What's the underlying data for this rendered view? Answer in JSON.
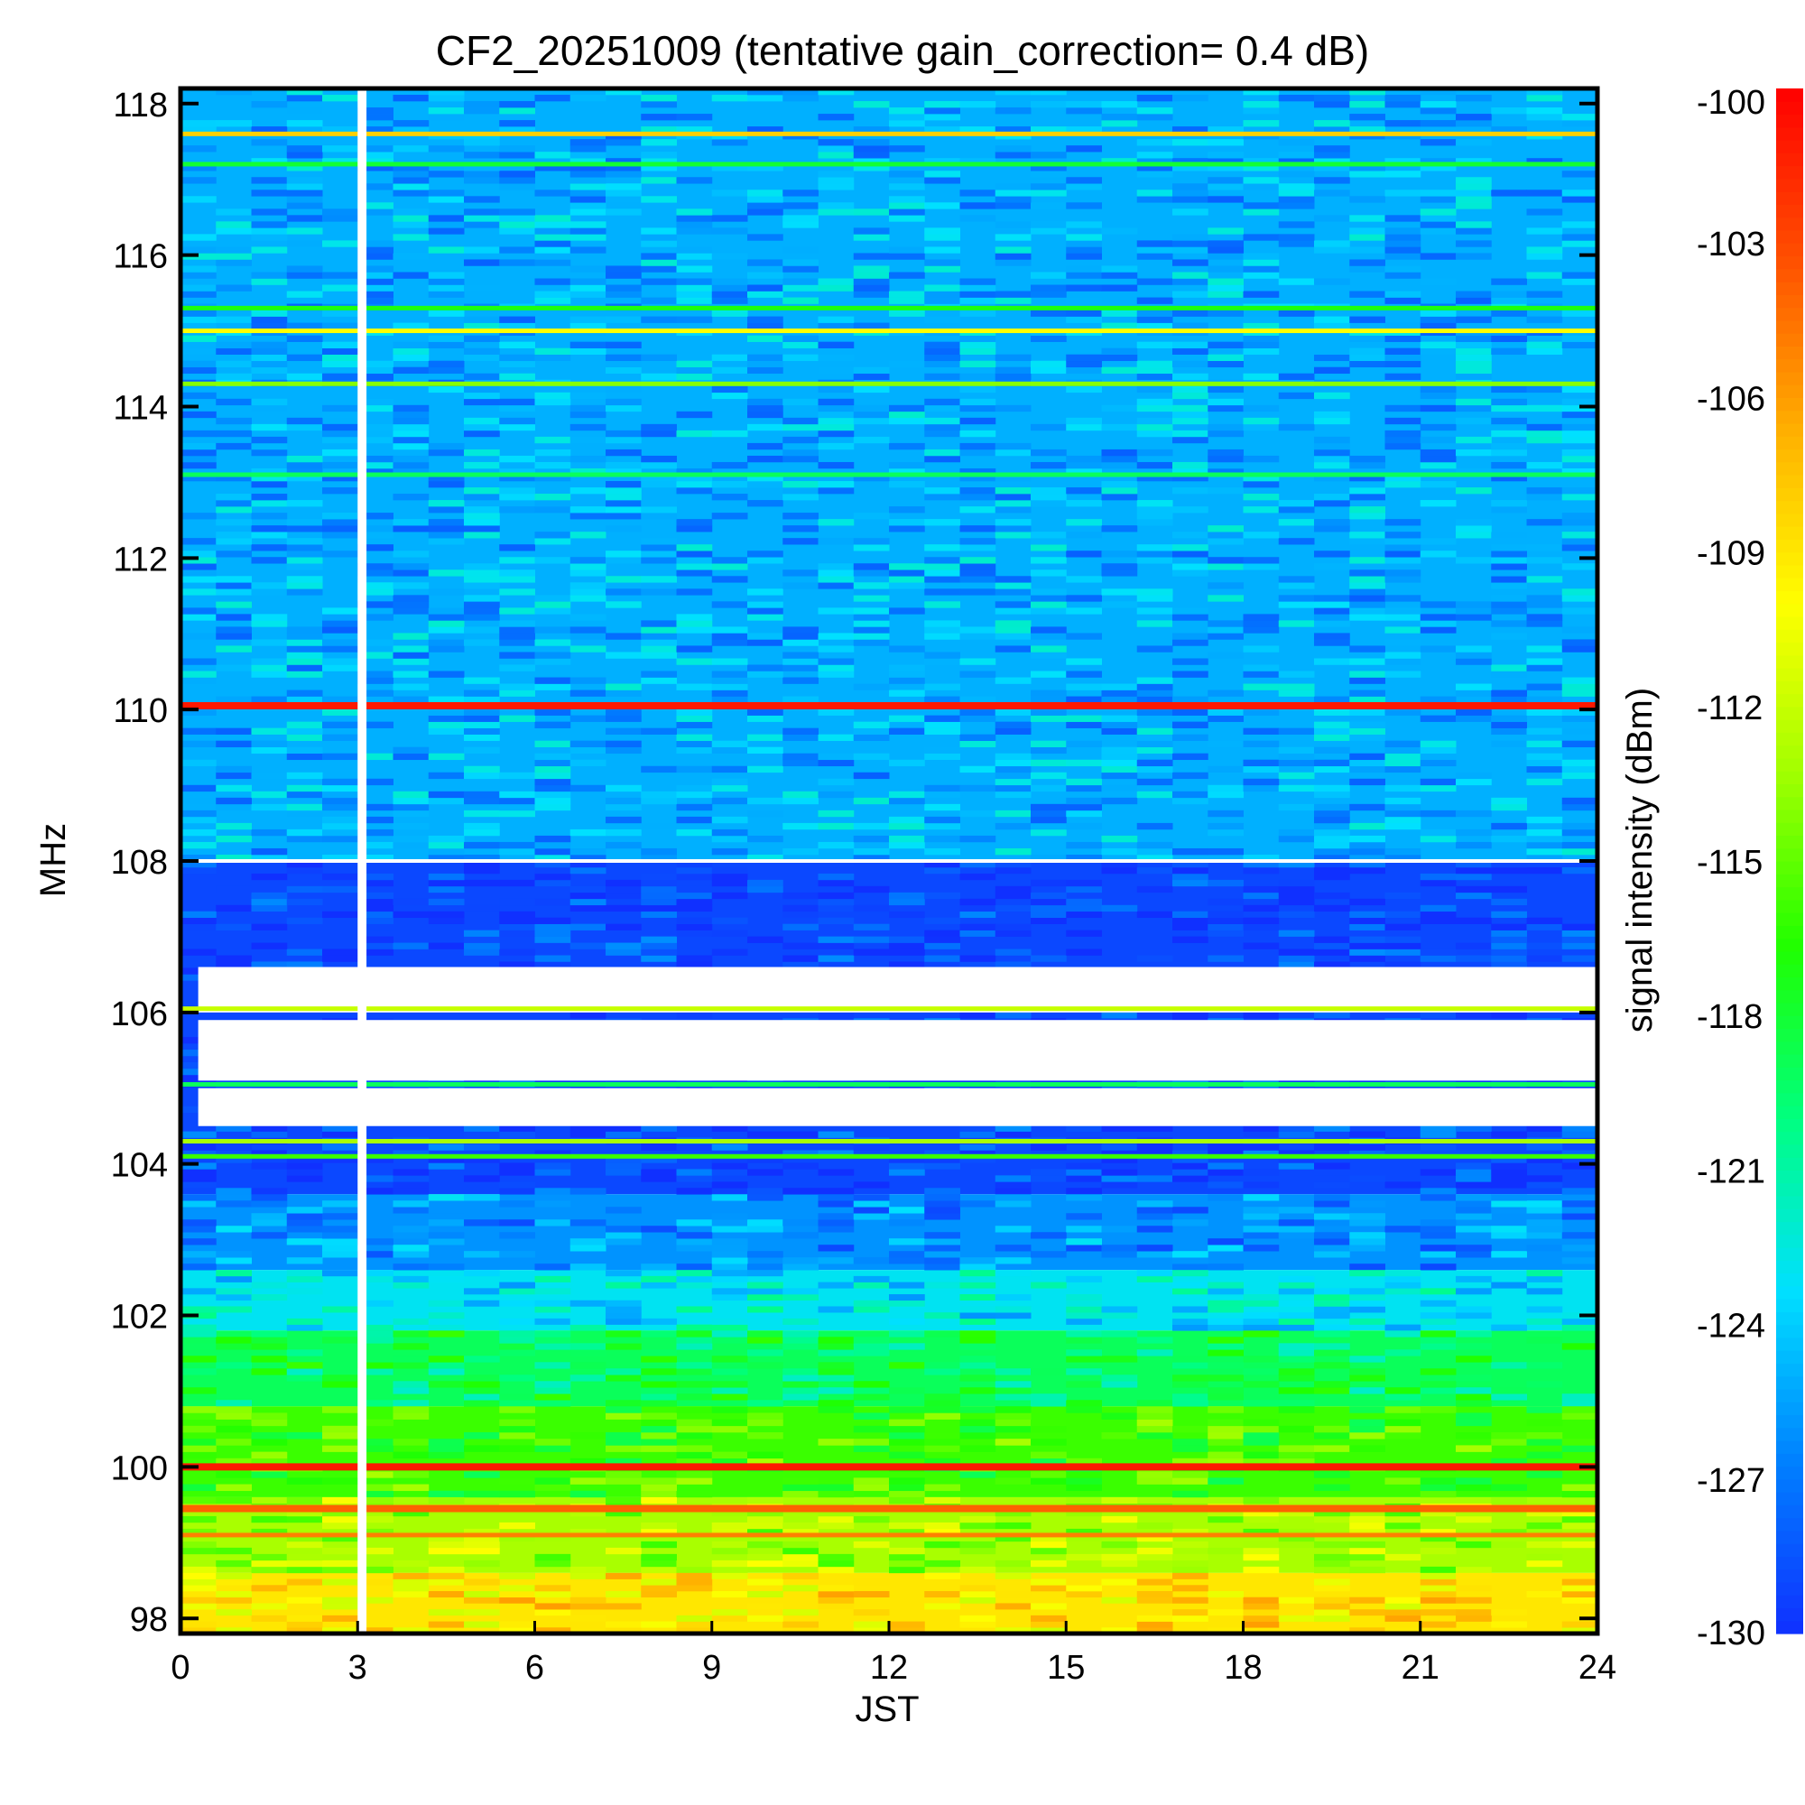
{
  "chart_data": {
    "type": "heatmap",
    "title": "CF2_20251009 (tentative gain_correction=  0.4 dB)",
    "xlabel": "JST",
    "ylabel": "MHz",
    "xlim": [
      0,
      24
    ],
    "ylim": [
      97.8,
      118.2
    ],
    "xticks": [
      "0",
      "3",
      "6",
      "9",
      "12",
      "15",
      "18",
      "21",
      "24"
    ],
    "xtick_values": [
      0,
      3,
      6,
      9,
      12,
      15,
      18,
      21,
      24
    ],
    "yticks": [
      "98",
      "100",
      "102",
      "104",
      "106",
      "108",
      "110",
      "112",
      "114",
      "116",
      "118"
    ],
    "ytick_values": [
      98,
      100,
      102,
      104,
      106,
      108,
      110,
      112,
      114,
      116,
      118
    ],
    "colorbar": {
      "label": "signal intensity (dBm)",
      "range": [
        -130,
        -100
      ],
      "ticks": [
        "-100",
        "-103",
        "-106",
        "-109",
        "-112",
        "-115",
        "-118",
        "-121",
        "-124",
        "-127",
        "-130"
      ],
      "tick_values": [
        -100,
        -103,
        -106,
        -109,
        -112,
        -115,
        -118,
        -121,
        -124,
        -127,
        -130
      ],
      "colors": [
        "#1030ff",
        "#0080ff",
        "#00e0ff",
        "#00ff80",
        "#20ff00",
        "#a0ff00",
        "#ffff00",
        "#ffb000",
        "#ff5000",
        "#ff0000"
      ]
    },
    "data_gap": {
      "start_hour": 3.0,
      "end_hour": 3.15
    },
    "bands": [
      {
        "freq_from": 108.0,
        "freq_to": 118.2,
        "dbm": -125
      },
      {
        "freq_from": 103.6,
        "freq_to": 108.0,
        "dbm": -129
      },
      {
        "freq_from": 102.6,
        "freq_to": 103.6,
        "dbm": -126
      },
      {
        "freq_from": 101.8,
        "freq_to": 102.6,
        "dbm": -123
      },
      {
        "freq_from": 100.8,
        "freq_to": 101.8,
        "dbm": -119
      },
      {
        "freq_from": 99.6,
        "freq_to": 100.8,
        "dbm": -116
      },
      {
        "freq_from": 98.6,
        "freq_to": 99.6,
        "dbm": -113
      },
      {
        "freq_from": 97.8,
        "freq_to": 98.6,
        "dbm": -109
      }
    ],
    "empty_regions": [
      {
        "freq_from": 106.0,
        "freq_to": 106.6,
        "hour_from": 0.3,
        "hour_to": 24
      },
      {
        "freq_from": 105.1,
        "freq_to": 105.9,
        "hour_from": 0.3,
        "hour_to": 24
      },
      {
        "freq_from": 104.5,
        "freq_to": 105.0,
        "hour_from": 0.3,
        "hour_to": 24
      }
    ],
    "stations": [
      {
        "freq": 117.6,
        "dbm": -108
      },
      {
        "freq": 117.2,
        "dbm": -118
      },
      {
        "freq": 115.3,
        "dbm": -117
      },
      {
        "freq": 115.0,
        "dbm": -110
      },
      {
        "freq": 114.3,
        "dbm": -114
      },
      {
        "freq": 113.1,
        "dbm": -119
      },
      {
        "freq": 110.05,
        "dbm": -101
      },
      {
        "freq": 106.05,
        "dbm": -112
      },
      {
        "freq": 105.05,
        "dbm": -119
      },
      {
        "freq": 104.3,
        "dbm": -113
      },
      {
        "freq": 104.1,
        "dbm": -116
      },
      {
        "freq": 100.0,
        "dbm": -101
      },
      {
        "freq": 99.45,
        "dbm": -104
      },
      {
        "freq": 99.1,
        "dbm": -105
      }
    ]
  }
}
